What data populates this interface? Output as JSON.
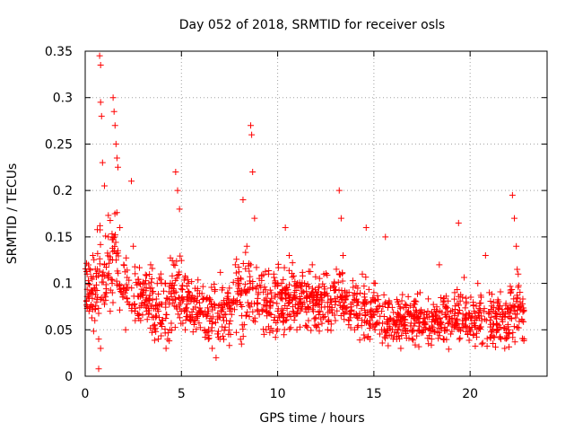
{
  "chart_data": {
    "type": "scatter",
    "title": "Day 052 of 2018, SRMTID for receiver osls",
    "xlabel": "GPS time / hours",
    "ylabel": "SRMTID / TECUs",
    "xlim": [
      0,
      24
    ],
    "ylim": [
      0,
      0.35
    ],
    "xticks": [
      0,
      5,
      10,
      15,
      20
    ],
    "xtick_labels": [
      "0",
      "5",
      "10",
      "15",
      "20"
    ],
    "yticks": [
      0,
      0.05,
      0.1,
      0.15,
      0.2,
      0.25,
      0.3,
      0.35
    ],
    "ytick_labels": [
      "0",
      "0.05",
      "0.1",
      "0.15",
      "0.2",
      "0.25",
      "0.3",
      "0.35"
    ],
    "grid": true,
    "marker": "+",
    "color": "#ff0000",
    "x_data_range": [
      0,
      22.8
    ],
    "note": "Approximately 2000 points; values are a representative sample read from the plot's envelope",
    "points": [
      [
        0.1,
        0.11
      ],
      [
        0.2,
        0.07
      ],
      [
        0.3,
        0.09
      ],
      [
        0.4,
        0.13
      ],
      [
        0.5,
        0.06
      ],
      [
        0.6,
        0.08
      ],
      [
        0.7,
        0.04
      ],
      [
        0.8,
        0.03
      ],
      [
        0.7,
        0.008
      ],
      [
        0.75,
        0.345
      ],
      [
        0.8,
        0.335
      ],
      [
        0.8,
        0.295
      ],
      [
        0.85,
        0.28
      ],
      [
        0.9,
        0.23
      ],
      [
        1.0,
        0.205
      ],
      [
        1.0,
        0.12
      ],
      [
        1.1,
        0.09
      ],
      [
        1.2,
        0.15
      ],
      [
        1.3,
        0.07
      ],
      [
        1.4,
        0.1
      ],
      [
        1.45,
        0.3
      ],
      [
        1.5,
        0.285
      ],
      [
        1.55,
        0.27
      ],
      [
        1.6,
        0.25
      ],
      [
        1.65,
        0.235
      ],
      [
        1.7,
        0.225
      ],
      [
        1.8,
        0.16
      ],
      [
        1.9,
        0.09
      ],
      [
        2.0,
        0.12
      ],
      [
        2.1,
        0.05
      ],
      [
        2.2,
        0.08
      ],
      [
        2.4,
        0.21
      ],
      [
        2.5,
        0.14
      ],
      [
        2.6,
        0.06
      ],
      [
        2.8,
        0.1
      ],
      [
        3.0,
        0.09
      ],
      [
        3.2,
        0.07
      ],
      [
        3.4,
        0.12
      ],
      [
        3.6,
        0.05
      ],
      [
        3.8,
        0.04
      ],
      [
        4.0,
        0.06
      ],
      [
        4.2,
        0.03
      ],
      [
        4.4,
        0.05
      ],
      [
        4.6,
        0.12
      ],
      [
        4.7,
        0.22
      ],
      [
        4.8,
        0.2
      ],
      [
        4.9,
        0.18
      ],
      [
        5.0,
        0.07
      ],
      [
        5.2,
        0.05
      ],
      [
        5.4,
        0.09
      ],
      [
        5.6,
        0.06
      ],
      [
        5.8,
        0.08
      ],
      [
        6.0,
        0.07
      ],
      [
        6.2,
        0.05
      ],
      [
        6.4,
        0.04
      ],
      [
        6.6,
        0.03
      ],
      [
        6.8,
        0.02
      ],
      [
        7.0,
        0.04
      ],
      [
        7.2,
        0.06
      ],
      [
        7.4,
        0.09
      ],
      [
        7.6,
        0.08
      ],
      [
        7.8,
        0.12
      ],
      [
        8.0,
        0.1
      ],
      [
        8.2,
        0.19
      ],
      [
        8.4,
        0.14
      ],
      [
        8.6,
        0.27
      ],
      [
        8.65,
        0.26
      ],
      [
        8.7,
        0.22
      ],
      [
        8.8,
        0.17
      ],
      [
        9.0,
        0.09
      ],
      [
        9.2,
        0.07
      ],
      [
        9.4,
        0.05
      ],
      [
        9.6,
        0.08
      ],
      [
        9.8,
        0.11
      ],
      [
        10.0,
        0.06
      ],
      [
        10.2,
        0.09
      ],
      [
        10.4,
        0.16
      ],
      [
        10.6,
        0.13
      ],
      [
        10.8,
        0.07
      ],
      [
        11.0,
        0.05
      ],
      [
        11.2,
        0.08
      ],
      [
        11.4,
        0.1
      ],
      [
        11.6,
        0.06
      ],
      [
        11.8,
        0.12
      ],
      [
        12.0,
        0.09
      ],
      [
        12.2,
        0.07
      ],
      [
        12.4,
        0.11
      ],
      [
        12.6,
        0.05
      ],
      [
        12.8,
        0.08
      ],
      [
        13.0,
        0.06
      ],
      [
        13.2,
        0.2
      ],
      [
        13.3,
        0.17
      ],
      [
        13.4,
        0.13
      ],
      [
        13.6,
        0.09
      ],
      [
        13.8,
        0.07
      ],
      [
        14.0,
        0.05
      ],
      [
        14.2,
        0.08
      ],
      [
        14.4,
        0.11
      ],
      [
        14.6,
        0.16
      ],
      [
        14.8,
        0.06
      ],
      [
        15.0,
        0.09
      ],
      [
        15.2,
        0.07
      ],
      [
        15.4,
        0.05
      ],
      [
        15.6,
        0.15
      ],
      [
        15.8,
        0.08
      ],
      [
        16.0,
        0.04
      ],
      [
        16.2,
        0.06
      ],
      [
        16.4,
        0.03
      ],
      [
        16.6,
        0.05
      ],
      [
        16.8,
        0.07
      ],
      [
        17.0,
        0.04
      ],
      [
        17.2,
        0.06
      ],
      [
        17.4,
        0.09
      ],
      [
        17.6,
        0.05
      ],
      [
        17.8,
        0.07
      ],
      [
        18.0,
        0.04
      ],
      [
        18.2,
        0.06
      ],
      [
        18.4,
        0.12
      ],
      [
        18.6,
        0.08
      ],
      [
        18.8,
        0.05
      ],
      [
        19.0,
        0.07
      ],
      [
        19.2,
        0.09
      ],
      [
        19.4,
        0.165
      ],
      [
        19.6,
        0.06
      ],
      [
        19.8,
        0.08
      ],
      [
        20.0,
        0.05
      ],
      [
        20.2,
        0.07
      ],
      [
        20.4,
        0.1
      ],
      [
        20.6,
        0.06
      ],
      [
        20.8,
        0.13
      ],
      [
        21.0,
        0.09
      ],
      [
        21.2,
        0.07
      ],
      [
        21.4,
        0.05
      ],
      [
        21.6,
        0.04
      ],
      [
        21.8,
        0.03
      ],
      [
        22.0,
        0.05
      ],
      [
        22.2,
        0.195
      ],
      [
        22.3,
        0.17
      ],
      [
        22.4,
        0.14
      ],
      [
        22.5,
        0.11
      ],
      [
        22.6,
        0.08
      ],
      [
        22.7,
        0.06
      ],
      [
        22.8,
        0.04
      ]
    ],
    "envelope": {
      "x": [
        0,
        0.5,
        0.75,
        1,
        1.5,
        2,
        2.5,
        3,
        4,
        4.8,
        5.5,
        6.5,
        7,
        8,
        8.6,
        9,
        10,
        11,
        12,
        13,
        13.3,
        14,
        15,
        16,
        17,
        18,
        19,
        19.4,
        20,
        21,
        22,
        22.3,
        22.8
      ],
      "lo": [
        0.05,
        0.04,
        0.02,
        0.04,
        0.05,
        0.05,
        0.04,
        0.04,
        0.02,
        0.03,
        0.04,
        0.02,
        0.02,
        0.03,
        0.03,
        0.03,
        0.03,
        0.04,
        0.04,
        0.04,
        0.04,
        0.03,
        0.03,
        0.02,
        0.02,
        0.02,
        0.02,
        0.02,
        0.02,
        0.02,
        0.02,
        0.02,
        0.03
      ],
      "hi": [
        0.13,
        0.14,
        0.2,
        0.16,
        0.22,
        0.15,
        0.14,
        0.13,
        0.12,
        0.16,
        0.12,
        0.11,
        0.12,
        0.14,
        0.16,
        0.14,
        0.13,
        0.13,
        0.12,
        0.12,
        0.14,
        0.12,
        0.11,
        0.1,
        0.1,
        0.1,
        0.1,
        0.12,
        0.1,
        0.1,
        0.1,
        0.14,
        0.09
      ]
    }
  }
}
